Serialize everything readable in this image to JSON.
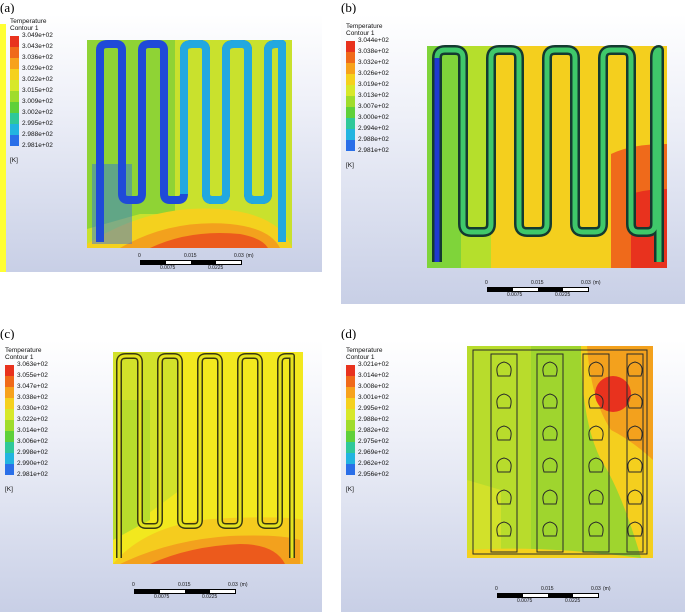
{
  "panels": [
    {
      "label": "(a)",
      "legend": {
        "title": "Temperature",
        "subtitle": "Contour 1",
        "values": [
          "3.049e+02",
          "3.043e+02",
          "3.036e+02",
          "3.029e+02",
          "3.022e+02",
          "3.015e+02",
          "3.009e+02",
          "3.002e+02",
          "2.995e+02",
          "2.988e+02",
          "2.981e+02"
        ],
        "unit": "[K]"
      },
      "scale": {
        "t0": "0",
        "t1": "0.015",
        "t2": "0.03",
        "unit": "(m)",
        "b1": "0.0075",
        "b2": "0.0225"
      }
    },
    {
      "label": "(b)",
      "legend": {
        "title": "Temperature",
        "subtitle": "Contour 1",
        "values": [
          "3.044e+02",
          "3.038e+02",
          "3.032e+02",
          "3.026e+02",
          "3.019e+02",
          "3.013e+02",
          "3.007e+02",
          "3.000e+02",
          "2.994e+02",
          "2.988e+02",
          "2.981e+02"
        ],
        "unit": "[K]"
      },
      "scale": {
        "t0": "0",
        "t1": "0.015",
        "t2": "0.03",
        "unit": "(m)",
        "b1": "0.0075",
        "b2": "0.0225"
      }
    },
    {
      "label": "(c)",
      "legend": {
        "title": "Temperature",
        "subtitle": "Contour 1",
        "values": [
          "3.063e+02",
          "3.055e+02",
          "3.047e+02",
          "3.038e+02",
          "3.030e+02",
          "3.022e+02",
          "3.014e+02",
          "3.006e+02",
          "2.998e+02",
          "2.990e+02",
          "2.981e+02"
        ],
        "unit": "[K]"
      },
      "scale": {
        "t0": "0",
        "t1": "0.015",
        "t2": "0.03",
        "unit": "(m)",
        "b1": "0.0075",
        "b2": "0.0225"
      }
    },
    {
      "label": "(d)",
      "legend": {
        "title": "Temperature",
        "subtitle": "Contour 1",
        "values": [
          "3.021e+02",
          "3.014e+02",
          "3.008e+02",
          "3.001e+02",
          "2.995e+02",
          "2.988e+02",
          "2.982e+02",
          "2.975e+02",
          "2.969e+02",
          "2.962e+02",
          "2.956e+02"
        ],
        "unit": "[K]"
      },
      "scale": {
        "t0": "0",
        "t1": "0.015",
        "t2": "0.03",
        "unit": "(m)",
        "b1": "0.0075",
        "b2": "0.0225"
      }
    }
  ],
  "colors": {
    "colormap": [
      "#e8321e",
      "#f06a1a",
      "#f7a21c",
      "#f5d11e",
      "#d7e82a",
      "#9fdc2c",
      "#5fd03a",
      "#2fc89a",
      "#22b4e0",
      "#2a6fe8",
      "#1f2ee0"
    ]
  }
}
